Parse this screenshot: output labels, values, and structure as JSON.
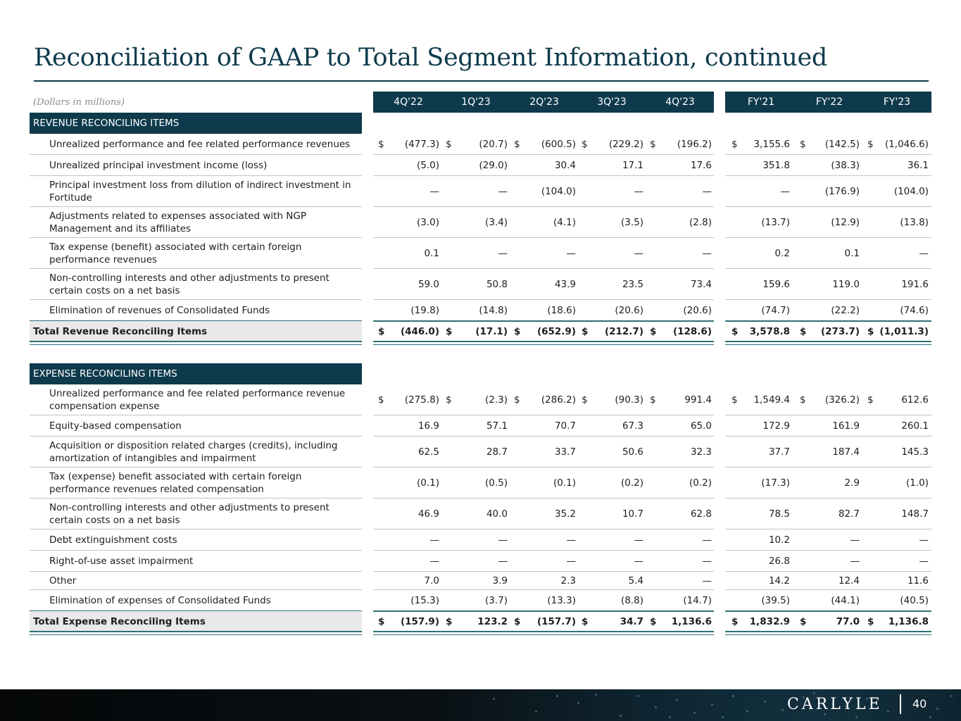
{
  "title": "Reconciliation of GAAP to Total Segment Information, continued",
  "units_note": "(Dollars in millions)",
  "columns": [
    "4Q'22",
    "1Q'23",
    "2Q'23",
    "3Q'23",
    "4Q'23",
    "FY'21",
    "FY'22",
    "FY'23"
  ],
  "revenue_section": {
    "heading": "REVENUE RECONCILING ITEMS",
    "rows": [
      {
        "label": "Unrealized performance and fee related performance revenues",
        "dollar": true,
        "values": [
          "(477.3)",
          "(20.7)",
          "(600.5)",
          "(229.2)",
          "(196.2)",
          "3,155.6",
          "(142.5)",
          "(1,046.6)"
        ]
      },
      {
        "label": "Unrealized principal investment income (loss)",
        "dollar": false,
        "values": [
          "(5.0)",
          "(29.0)",
          "30.4",
          "17.1",
          "17.6",
          "351.8",
          "(38.3)",
          "36.1"
        ]
      },
      {
        "label": "Principal investment loss from dilution of indirect investment in Fortitude",
        "dollar": false,
        "values": [
          "—",
          "—",
          "(104.0)",
          "—",
          "—",
          "—",
          "(176.9)",
          "(104.0)"
        ]
      },
      {
        "label": "Adjustments related to expenses associated with NGP Management and its affiliates",
        "dollar": false,
        "values": [
          "(3.0)",
          "(3.4)",
          "(4.1)",
          "(3.5)",
          "(2.8)",
          "(13.7)",
          "(12.9)",
          "(13.8)"
        ]
      },
      {
        "label": "Tax expense (benefit) associated with certain foreign performance revenues",
        "dollar": false,
        "values": [
          "0.1",
          "—",
          "—",
          "—",
          "—",
          "0.2",
          "0.1",
          "—"
        ]
      },
      {
        "label": "Non-controlling interests and other adjustments to present certain costs on a net basis",
        "dollar": false,
        "values": [
          "59.0",
          "50.8",
          "43.9",
          "23.5",
          "73.4",
          "159.6",
          "119.0",
          "191.6"
        ]
      },
      {
        "label": "Elimination of revenues of Consolidated Funds",
        "dollar": false,
        "values": [
          "(19.8)",
          "(14.8)",
          "(18.6)",
          "(20.6)",
          "(20.6)",
          "(74.7)",
          "(22.2)",
          "(74.6)"
        ]
      }
    ],
    "total": {
      "label": "Total Revenue Reconciling Items",
      "values": [
        "(446.0)",
        "(17.1)",
        "(652.9)",
        "(212.7)",
        "(128.6)",
        "3,578.8",
        "(273.7)",
        "(1,011.3)"
      ]
    }
  },
  "expense_section": {
    "heading": "EXPENSE RECONCILING ITEMS",
    "rows": [
      {
        "label": "Unrealized performance and fee related performance revenue compensation expense",
        "dollar": true,
        "values": [
          "(275.8)",
          "(2.3)",
          "(286.2)",
          "(90.3)",
          "991.4",
          "1,549.4",
          "(326.2)",
          "612.6"
        ]
      },
      {
        "label": "Equity-based compensation",
        "dollar": false,
        "values": [
          "16.9",
          "57.1",
          "70.7",
          "67.3",
          "65.0",
          "172.9",
          "161.9",
          "260.1"
        ]
      },
      {
        "label": "Acquisition or disposition related charges (credits), including amortization of intangibles and impairment",
        "dollar": false,
        "values": [
          "62.5",
          "28.7",
          "33.7",
          "50.6",
          "32.3",
          "37.7",
          "187.4",
          "145.3"
        ]
      },
      {
        "label": "Tax (expense) benefit associated with certain foreign performance revenues related compensation",
        "dollar": false,
        "values": [
          "(0.1)",
          "(0.5)",
          "(0.1)",
          "(0.2)",
          "(0.2)",
          "(17.3)",
          "2.9",
          "(1.0)"
        ]
      },
      {
        "label": "Non-controlling interests and other adjustments to present certain costs on a net basis",
        "dollar": false,
        "values": [
          "46.9",
          "40.0",
          "35.2",
          "10.7",
          "62.8",
          "78.5",
          "82.7",
          "148.7"
        ]
      },
      {
        "label": "Debt extinguishment costs",
        "dollar": false,
        "values": [
          "—",
          "—",
          "—",
          "—",
          "—",
          "10.2",
          "—",
          "—"
        ]
      },
      {
        "label": "Right-of-use asset impairment",
        "dollar": false,
        "values": [
          "—",
          "—",
          "—",
          "—",
          "—",
          "26.8",
          "—",
          "—"
        ]
      },
      {
        "label": "Other",
        "dollar": false,
        "values": [
          "7.0",
          "3.9",
          "2.3",
          "5.4",
          "—",
          "14.2",
          "12.4",
          "11.6"
        ]
      },
      {
        "label": "Elimination of expenses of Consolidated Funds",
        "dollar": false,
        "values": [
          "(15.3)",
          "(3.7)",
          "(13.3)",
          "(8.8)",
          "(14.7)",
          "(39.5)",
          "(44.1)",
          "(40.5)"
        ]
      }
    ],
    "total": {
      "label": "Total Expense Reconciling Items",
      "values": [
        "(157.9)",
        "123.2",
        "(157.7)",
        "34.7",
        "1,136.6",
        "1,832.9",
        "77.0",
        "1,136.8"
      ]
    }
  },
  "currency_symbol": "$",
  "footer": {
    "logo": "CARLYLE",
    "page_number": "40"
  }
}
